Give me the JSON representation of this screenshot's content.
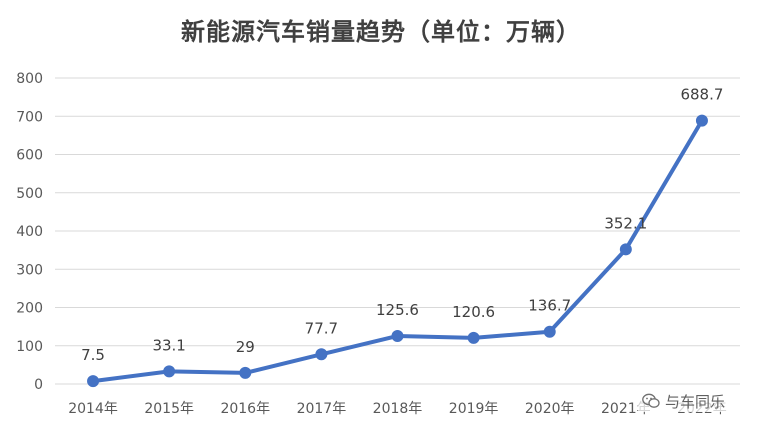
{
  "chart_data": {
    "type": "line",
    "title": "新能源汽车销量趋势（单位：万辆）",
    "categories": [
      "2014年",
      "2015年",
      "2016年",
      "2017年",
      "2018年",
      "2019年",
      "2020年",
      "2021年",
      "2022年"
    ],
    "series": [
      {
        "values": [
          7.5,
          33.1,
          29,
          77.7,
          125.6,
          120.6,
          136.7,
          352.1,
          688.7
        ]
      }
    ],
    "data_labels": [
      "7.5",
      "33.1",
      "29",
      "77.7",
      "125.6",
      "120.6",
      "136.7",
      "352.1",
      "688.7"
    ],
    "ylim": [
      0,
      800
    ],
    "yticks": [
      "0",
      "100",
      "200",
      "300",
      "400",
      "500",
      "600",
      "700",
      "800"
    ],
    "grid": true,
    "legend": "none",
    "series_color": "#4472c4"
  },
  "watermark": {
    "text": "与车同乐",
    "icon": "wechat-icon"
  }
}
